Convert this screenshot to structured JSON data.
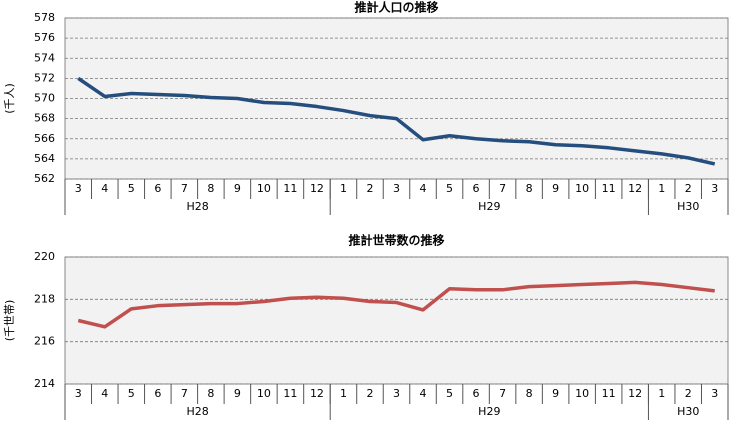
{
  "chart_data": [
    {
      "type": "line",
      "title": "推計人口の推移",
      "y_label": "(千人)",
      "categories": [
        "3",
        "4",
        "5",
        "6",
        "7",
        "8",
        "9",
        "10",
        "11",
        "12",
        "1",
        "2",
        "3",
        "4",
        "5",
        "6",
        "7",
        "8",
        "9",
        "10",
        "11",
        "12",
        "1",
        "2",
        "3"
      ],
      "groups": [
        {
          "label": "H28",
          "count": 10
        },
        {
          "label": "H29",
          "count": 12
        },
        {
          "label": "H30",
          "count": 3
        }
      ],
      "values": [
        572.0,
        570.2,
        570.5,
        570.4,
        570.3,
        570.1,
        570.0,
        569.6,
        569.5,
        569.2,
        568.8,
        568.3,
        568.0,
        565.9,
        566.3,
        566.0,
        565.8,
        565.7,
        565.4,
        565.3,
        565.1,
        564.8,
        564.5,
        564.1,
        563.5
      ],
      "color": "#254e7e",
      "ylim": [
        562,
        578
      ],
      "yticks": [
        562,
        564,
        566,
        568,
        570,
        572,
        574,
        576,
        578
      ],
      "grid": true
    },
    {
      "type": "line",
      "title": "推計世帯数の推移",
      "y_label": "(千世帯)",
      "categories": [
        "3",
        "4",
        "5",
        "6",
        "7",
        "8",
        "9",
        "10",
        "11",
        "12",
        "1",
        "2",
        "3",
        "4",
        "5",
        "6",
        "7",
        "8",
        "9",
        "10",
        "11",
        "12",
        "1",
        "2",
        "3"
      ],
      "groups": [
        {
          "label": "H28",
          "count": 10
        },
        {
          "label": "H29",
          "count": 12
        },
        {
          "label": "H30",
          "count": 3
        }
      ],
      "values": [
        217.0,
        216.7,
        217.55,
        217.7,
        217.75,
        217.8,
        217.8,
        217.9,
        218.05,
        218.1,
        218.05,
        217.9,
        217.85,
        217.5,
        218.5,
        218.45,
        218.45,
        218.6,
        218.65,
        218.7,
        218.75,
        218.8,
        218.7,
        218.55,
        218.4
      ],
      "color": "#c0504d",
      "ylim": [
        214,
        220
      ],
      "yticks": [
        214,
        216,
        218,
        220
      ],
      "grid": true
    }
  ]
}
